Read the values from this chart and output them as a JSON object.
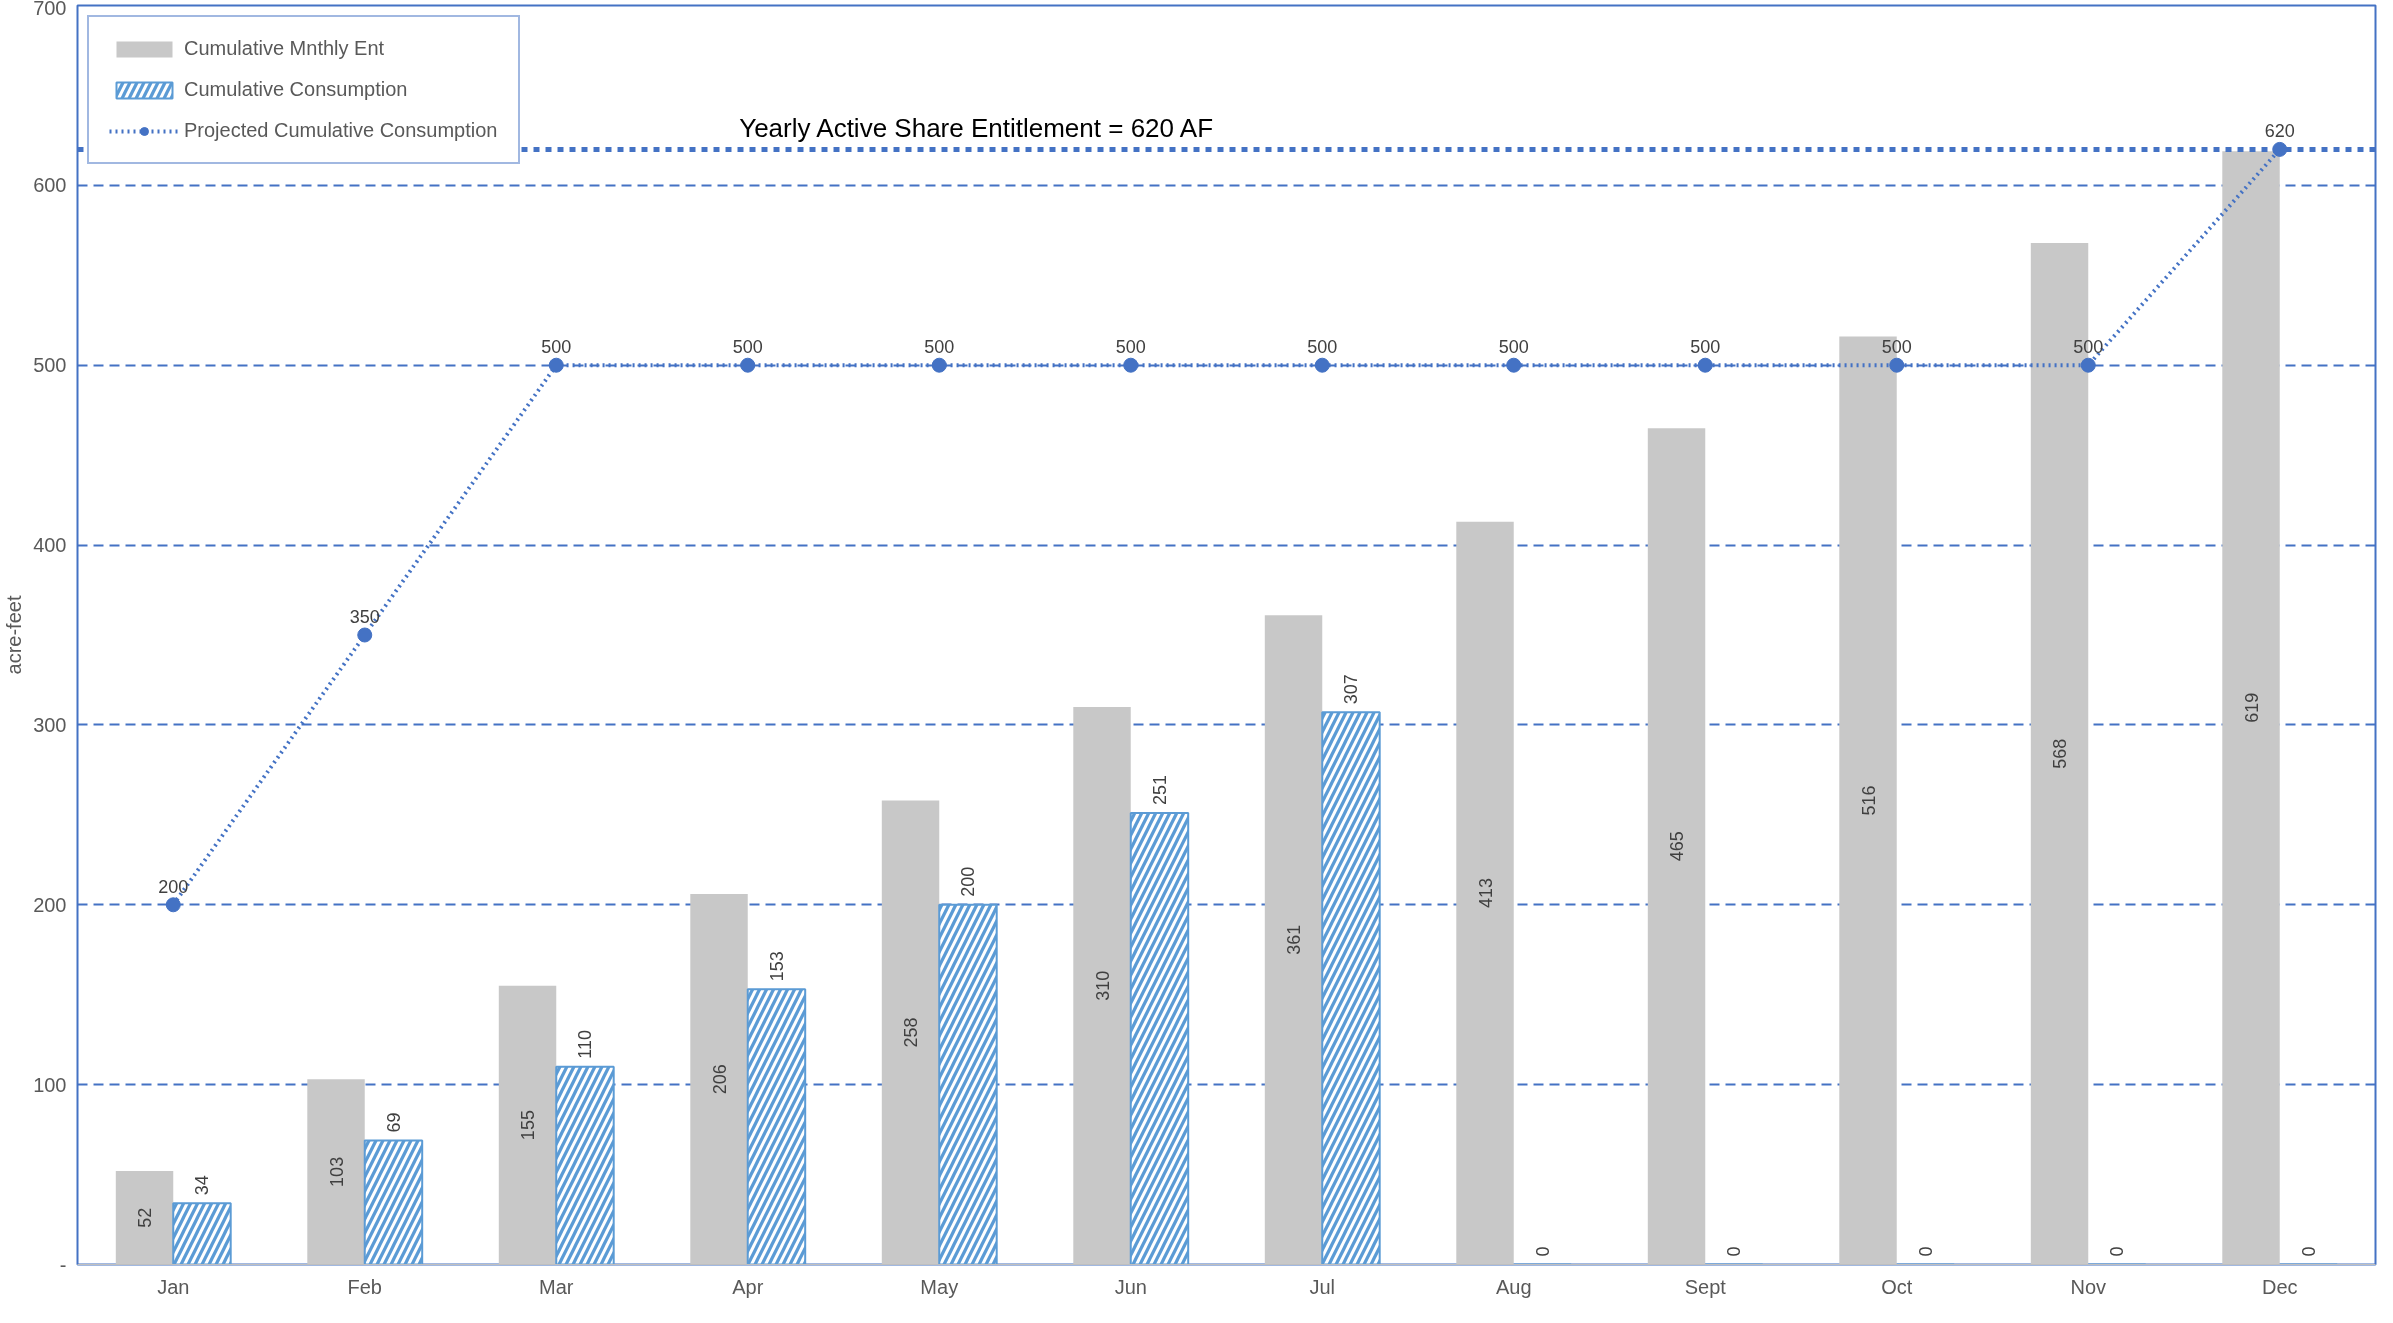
{
  "chart_data": {
    "type": "bar",
    "ylabel": "acre-feet",
    "categories": [
      "Jan",
      "Feb",
      "Mar",
      "Apr",
      "May",
      "Jun",
      "Jul",
      "Aug",
      "Sept",
      "Oct",
      "Nov",
      "Dec"
    ],
    "series": [
      {
        "name": "Cumulative Mnthly Ent",
        "color": "#c8c8c8",
        "values": [
          52,
          103,
          155,
          206,
          258,
          310,
          361,
          413,
          465,
          516,
          568,
          619
        ]
      },
      {
        "name": "Cumulative Consumption",
        "color": "#5b9bd5",
        "values": [
          34,
          69,
          110,
          153,
          200,
          251,
          307,
          0,
          0,
          0,
          0,
          0
        ]
      },
      {
        "name": "Projected Cumulative Consumption",
        "type": "line",
        "color": "#4472c4",
        "marker": "circle",
        "line_style": "dotted",
        "values": [
          200,
          350,
          500,
          500,
          500,
          500,
          500,
          500,
          500,
          500,
          500,
          620
        ]
      }
    ],
    "ylim": [
      0,
      700
    ],
    "yticks": [
      {
        "value": 0,
        "label": "-"
      },
      100,
      200,
      300,
      400,
      500,
      600,
      700
    ],
    "ref_lines": [
      {
        "axis": "y",
        "value": 620,
        "label": "Yearly Active Share Entitlement = 620 AF",
        "color": "#4472c4",
        "line_style": "dashed"
      }
    ],
    "grid": "y",
    "legend": "top left",
    "data_labels": true
  }
}
